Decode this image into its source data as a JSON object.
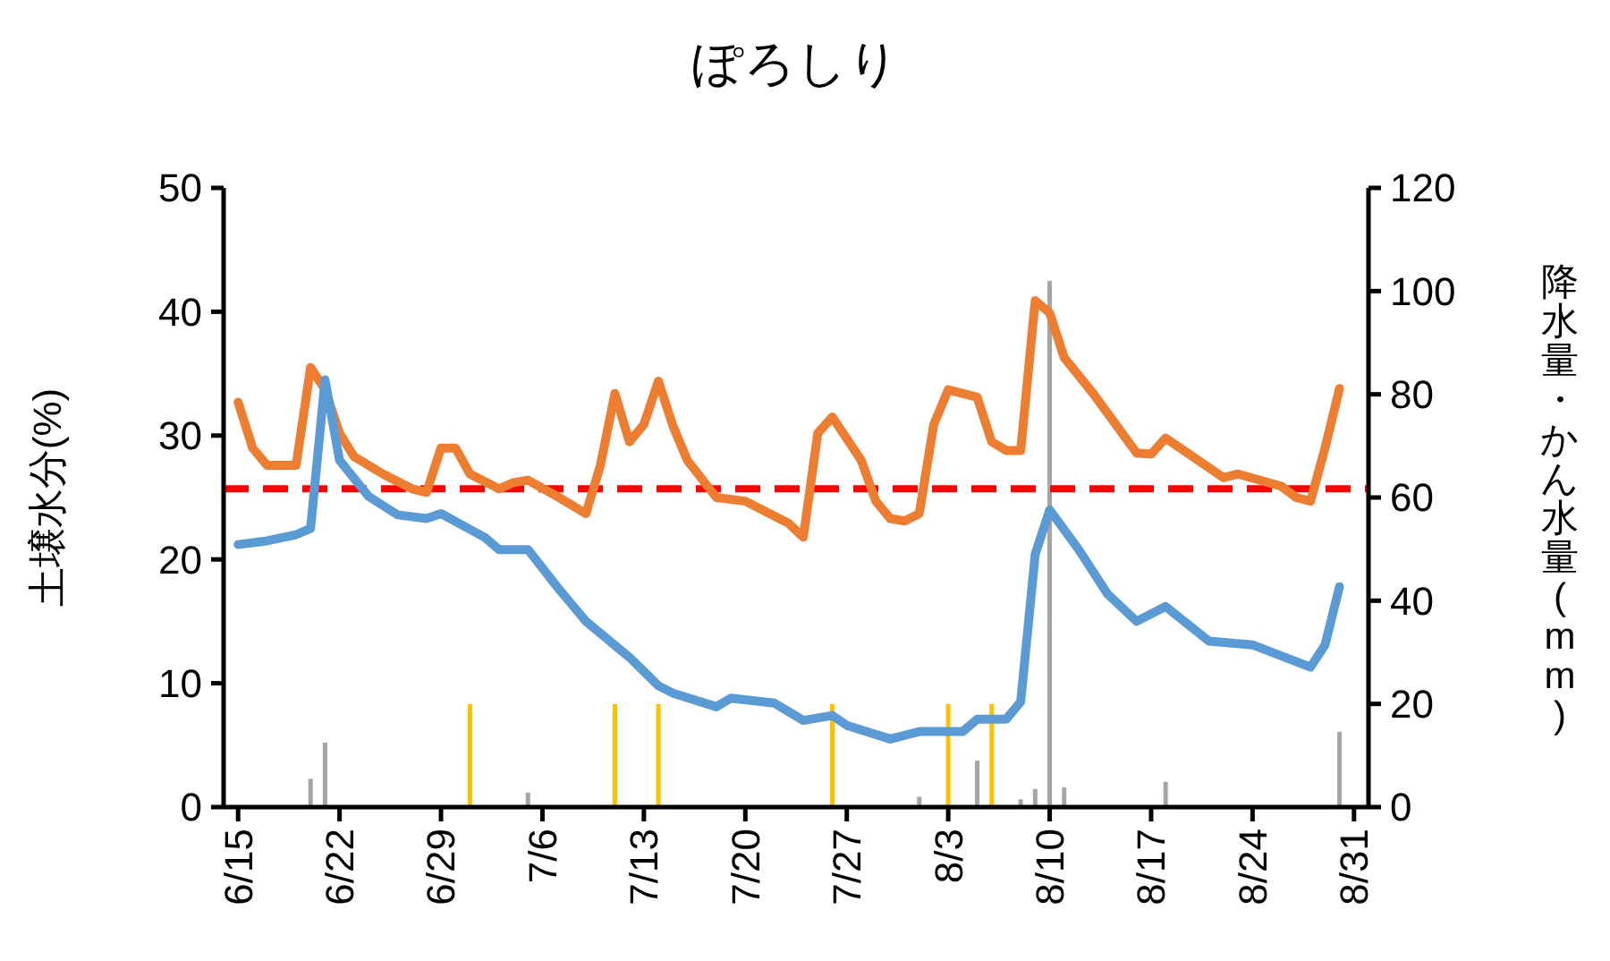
{
  "chart_data": {
    "type": "line",
    "title": "ぽろしり",
    "ylabel": "土壌水分(%)",
    "y2label": "降水量・かん水量(mm)",
    "xlim": [
      "--06-14",
      "--09-01"
    ],
    "xticks": [
      {
        "value": "--06-15",
        "label": "6/15"
      },
      {
        "value": "--06-22",
        "label": "6/22"
      },
      {
        "value": "--06-29",
        "label": "6/29"
      },
      {
        "value": "--07-06",
        "label": "7/6"
      },
      {
        "value": "--07-13",
        "label": "7/13"
      },
      {
        "value": "--07-20",
        "label": "7/20"
      },
      {
        "value": "--07-27",
        "label": "7/27"
      },
      {
        "value": "--08-03",
        "label": "8/3"
      },
      {
        "value": "--08-10",
        "label": "8/10"
      },
      {
        "value": "--08-17",
        "label": "8/17"
      },
      {
        "value": "--08-24",
        "label": "8/24"
      },
      {
        "value": "--08-31",
        "label": "8/31"
      }
    ],
    "ylim": [
      0,
      50
    ],
    "yticks": [
      0,
      10,
      20,
      30,
      40,
      50
    ],
    "y2lim": [
      0,
      120
    ],
    "y2ticks": [
      0,
      20,
      40,
      60,
      80,
      100,
      120
    ],
    "grid": false,
    "marker": "none",
    "ref_lines": [
      {
        "axis": "y",
        "value": 25.7,
        "color": "#ff0000",
        "line_style": "dashed"
      }
    ],
    "series": [
      {
        "type": "bar",
        "axis": "y2",
        "color": "#a5a5a5",
        "x": [
          "--06-20",
          "--06-21",
          "--07-05",
          "--08-01",
          "--08-05",
          "--08-08",
          "--08-09",
          "--08-10",
          "--08-11",
          "--08-18",
          "--08-30"
        ],
        "values": [
          5.5,
          12.5,
          2.8,
          2,
          9,
          1.5,
          3.5,
          102,
          3.8,
          4.9,
          14.6
        ]
      },
      {
        "type": "bar",
        "axis": "y2",
        "color": "#ffc000",
        "x": [
          "--07-01",
          "--07-11",
          "--07-14",
          "--07-26",
          "--08-03",
          "--08-06"
        ],
        "values": [
          20,
          20,
          20,
          20,
          20,
          20
        ]
      },
      {
        "color": "#ed7d31",
        "x": [
          "--06-15",
          "--06-16",
          "--06-17",
          "--06-19",
          "--06-20",
          "--06-21",
          "--06-22",
          "--06-23",
          "--06-25",
          "--06-27",
          "--06-28",
          "--06-29",
          "--06-30",
          "--07-01",
          "--07-03",
          "--07-04",
          "--07-05",
          "--07-07",
          "--07-09",
          "--07-10",
          "--07-11",
          "--07-12",
          "--07-13",
          "--07-14",
          "--07-15",
          "--07-16",
          "--07-18",
          "--07-20",
          "--07-23",
          "--07-24",
          "--07-25",
          "--07-26",
          "--07-28",
          "--07-29",
          "--07-30",
          "--07-31",
          "--08-01",
          "--08-02",
          "--08-03",
          "--08-05",
          "--08-06",
          "--08-07",
          "--08-08",
          "--08-09",
          "--08-10",
          "--08-11",
          "--08-13",
          "--08-16",
          "--08-17",
          "--08-18",
          "--08-19",
          "--08-22",
          "--08-23",
          "--08-26",
          "--08-27",
          "--08-28",
          "--08-29",
          "--08-30"
        ],
        "values": [
          32.7,
          29.0,
          27.6,
          27.6,
          35.5,
          33.7,
          30.2,
          28.3,
          26.9,
          25.7,
          25.4,
          29.0,
          29.0,
          26.9,
          25.7,
          26.2,
          26.4,
          25.1,
          23.7,
          27.6,
          33.4,
          29.5,
          30.9,
          34.4,
          30.8,
          28.0,
          25.0,
          24.7,
          22.9,
          21.8,
          30.2,
          31.5,
          28.0,
          24.7,
          23.3,
          23.1,
          23.7,
          30.9,
          33.7,
          33.1,
          29.5,
          28.8,
          28.8,
          40.9,
          39.9,
          36.3,
          33.4,
          28.6,
          28.5,
          29.8,
          29.0,
          26.6,
          26.9,
          25.9,
          25.0,
          24.7,
          29.0,
          33.8
        ]
      },
      {
        "color": "#5b9bd5",
        "x": [
          "--06-15",
          "--06-17",
          "--06-19",
          "--06-20",
          "--06-21",
          "--06-22",
          "--06-24",
          "--06-26",
          "--06-28",
          "--06-29",
          "--07-02",
          "--07-03",
          "--07-05",
          "--07-07",
          "--07-09",
          "--07-12",
          "--07-14",
          "--07-15",
          "--07-18",
          "--07-19",
          "--07-22",
          "--07-24",
          "--07-26",
          "--07-27",
          "--07-30",
          "--08-01",
          "--08-04",
          "--08-05",
          "--08-07",
          "--08-08",
          "--08-09",
          "--08-10",
          "--08-12",
          "--08-14",
          "--08-16",
          "--08-18",
          "--08-21",
          "--08-24",
          "--08-28",
          "--08-29",
          "--08-30"
        ],
        "values": [
          21.2,
          21.5,
          22.0,
          22.5,
          34.5,
          28.0,
          25.1,
          23.6,
          23.3,
          23.7,
          21.8,
          20.8,
          20.8,
          17.8,
          15.0,
          12.1,
          9.8,
          9.2,
          8.1,
          8.8,
          8.4,
          7.0,
          7.4,
          6.6,
          5.5,
          6.1,
          6.1,
          7.1,
          7.1,
          8.5,
          20.4,
          24.0,
          20.8,
          17.2,
          15.0,
          16.2,
          13.4,
          13.1,
          11.3,
          13.1,
          17.8
        ]
      }
    ]
  }
}
